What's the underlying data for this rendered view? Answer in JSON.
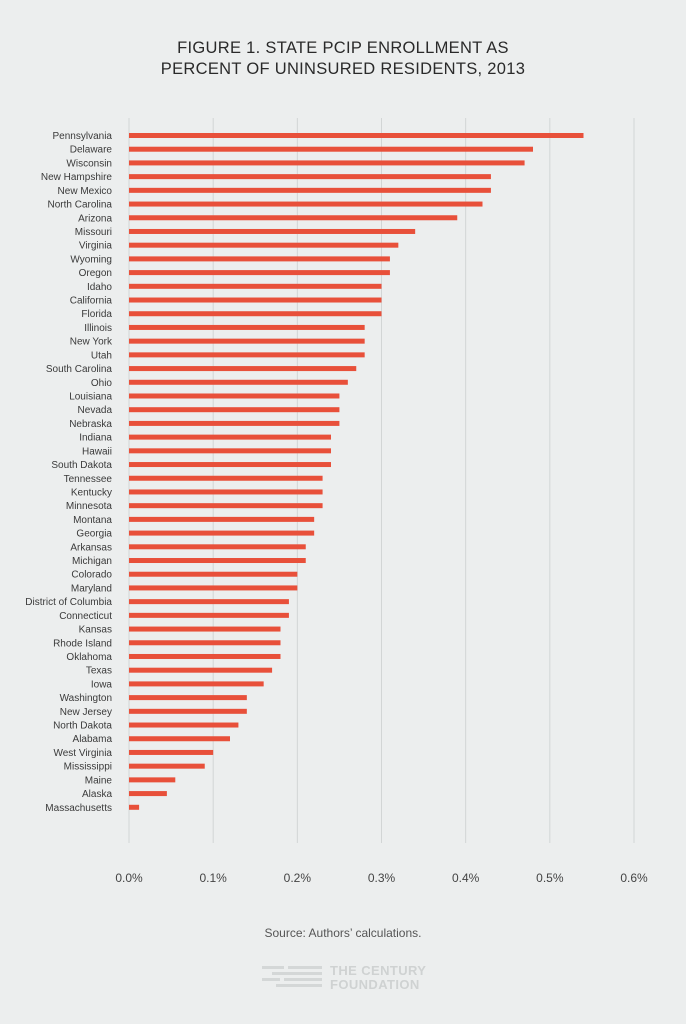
{
  "chart_data": {
    "type": "bar",
    "orientation": "horizontal",
    "title_lines": [
      "FIGURE 1. STATE PCIP ENROLLMENT AS",
      "PERCENT OF UNINSURED RESIDENTS, 2013"
    ],
    "xlabel": "",
    "ylabel": "",
    "xlim": [
      0,
      0.6
    ],
    "x_ticks": [
      "0.0%",
      "0.1%",
      "0.2%",
      "0.3%",
      "0.4%",
      "0.5%",
      "0.6%"
    ],
    "x_tick_values": [
      0,
      0.1,
      0.2,
      0.3,
      0.4,
      0.5,
      0.6
    ],
    "grid": "vertical",
    "legend": "none",
    "bar_color": "#e8503a",
    "categories": [
      "Pennsylvania",
      "Delaware",
      "Wisconsin",
      "New Hampshire",
      "New Mexico",
      "North Carolina",
      "Arizona",
      "Missouri",
      "Virginia",
      "Wyoming",
      "Oregon",
      "Idaho",
      "California",
      "Florida",
      "Illinois",
      "New York",
      "Utah",
      "South Carolina",
      "Ohio",
      "Louisiana",
      "Nevada",
      "Nebraska",
      "Indiana",
      "Hawaii",
      "South Dakota",
      "Tennessee",
      "Kentucky",
      "Minnesota",
      "Montana",
      "Georgia",
      "Arkansas",
      "Michigan",
      "Colorado",
      "Maryland",
      "District of Columbia",
      "Connecticut",
      "Kansas",
      "Rhode Island",
      "Oklahoma",
      "Texas",
      "Iowa",
      "Washington",
      "New Jersey",
      "North Dakota",
      "Alabama",
      "West Virginia",
      "Mississippi",
      "Maine",
      "Alaska",
      "Massachusetts"
    ],
    "values": [
      0.54,
      0.48,
      0.47,
      0.43,
      0.43,
      0.42,
      0.39,
      0.34,
      0.32,
      0.31,
      0.31,
      0.3,
      0.3,
      0.3,
      0.28,
      0.28,
      0.28,
      0.27,
      0.26,
      0.25,
      0.25,
      0.25,
      0.24,
      0.24,
      0.24,
      0.23,
      0.23,
      0.23,
      0.22,
      0.22,
      0.21,
      0.21,
      0.2,
      0.2,
      0.19,
      0.19,
      0.18,
      0.18,
      0.18,
      0.17,
      0.16,
      0.14,
      0.14,
      0.13,
      0.12,
      0.1,
      0.09,
      0.055,
      0.045,
      0.012
    ]
  },
  "source": "Source: Authors’ calculations.",
  "logo": {
    "line1": "THE CENTURY",
    "line2": "FOUNDATION"
  }
}
